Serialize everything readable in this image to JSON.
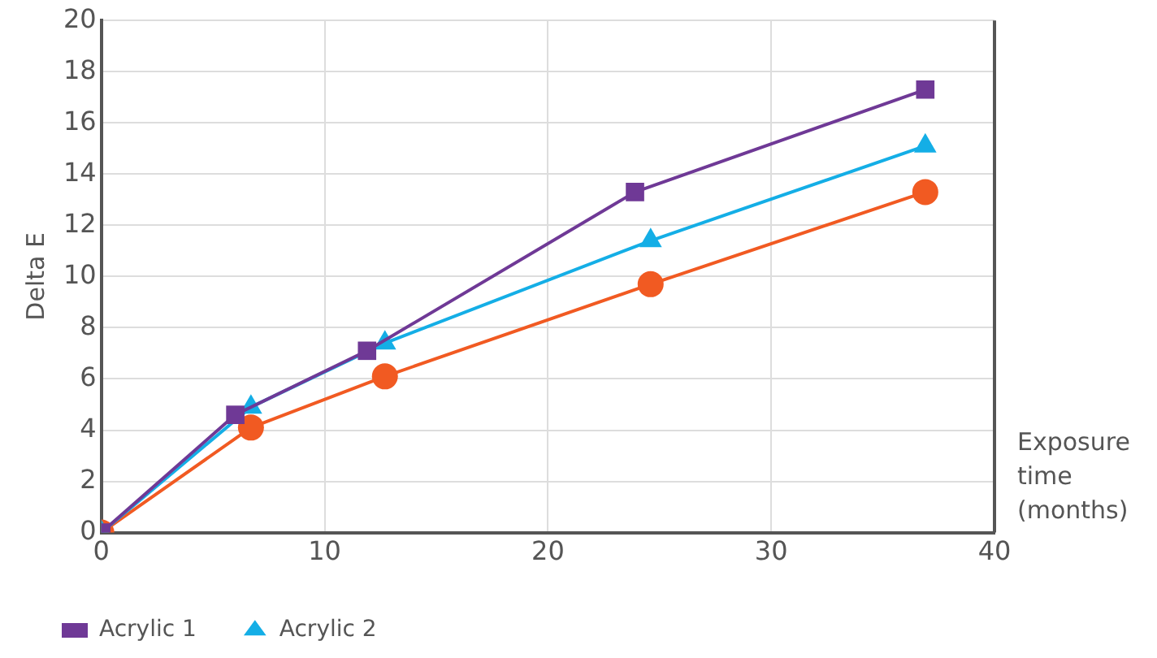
{
  "chart_data": {
    "type": "line",
    "xlabel": "Exposure time (months)",
    "ylabel": "Delta E",
    "xlim": [
      0,
      40
    ],
    "xticks": [
      0,
      10,
      20,
      30,
      40
    ],
    "ylim": [
      0,
      20
    ],
    "yticks": [
      0,
      2,
      4,
      6,
      8,
      10,
      12,
      14,
      16,
      18,
      20
    ],
    "grid": true,
    "legend": "bottom left",
    "series": [
      {
        "name": "Acrylic 1",
        "color": "#6f3996",
        "marker": "square",
        "x": [
          0,
          6.0,
          11.9,
          23.9,
          36.9
        ],
        "values": [
          0,
          4.6,
          7.1,
          13.3,
          17.3
        ]
      },
      {
        "name": "Acrylic 2",
        "color": "#14aee6",
        "marker": "triangle",
        "x": [
          0,
          6.7,
          12.7,
          24.6,
          36.9
        ],
        "values": [
          0,
          4.9,
          7.4,
          11.4,
          15.1
        ]
      },
      {
        "color": "#f15a22",
        "marker": "circle",
        "x": [
          0,
          6.7,
          12.7,
          24.6,
          36.9
        ],
        "values": [
          0,
          4.1,
          6.1,
          9.7,
          13.3
        ]
      }
    ]
  }
}
